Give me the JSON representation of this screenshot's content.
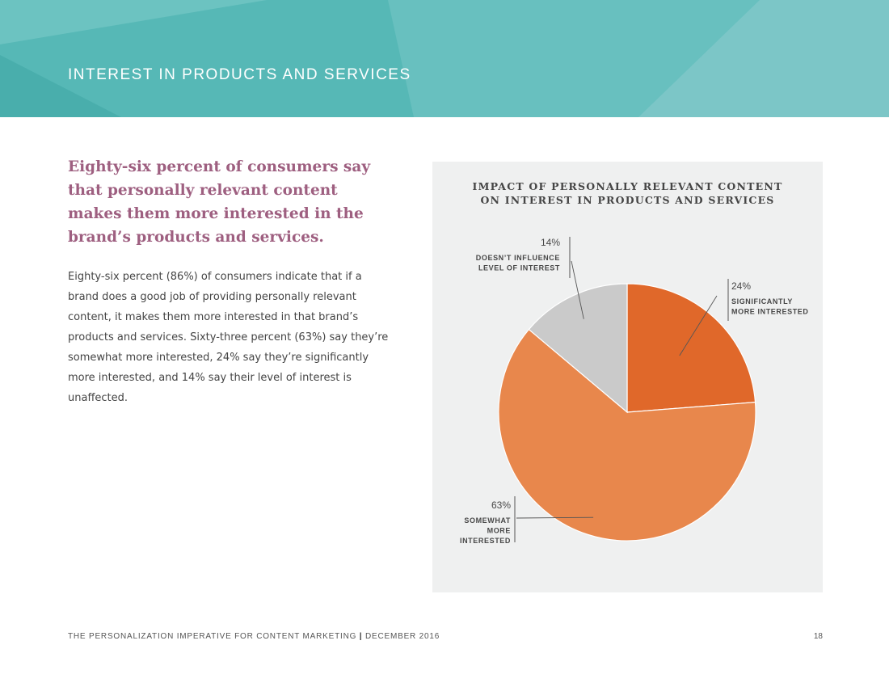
{
  "header": {
    "title": "INTEREST IN PRODUCTS AND SERVICES"
  },
  "intro": {
    "headline": "Eighty-six percent of consumers say that personally relevant content makes them more interested in the brand’s products and services.",
    "body": "Eighty-six percent (86%) of consumers indicate that if a brand does a good job of providing personally relevant content, it makes them more interested in that brand’s products and services. Sixty-three percent (63%) say they’re somewhat more interested, 24% say they’re significantly more interested, and 14% say their level of interest is unaffected."
  },
  "chart_data": {
    "type": "pie",
    "title_lines": [
      "IMPACT OF PERSONALLY RELEVANT CONTENT",
      "ON INTEREST IN PRODUCTS AND SERVICES"
    ],
    "slices": [
      {
        "label": "24%",
        "name_lines": [
          "SIGNIFICANTLY",
          "MORE INTERESTED"
        ],
        "value": 24,
        "color": "#e0682a"
      },
      {
        "label": "63%",
        "name_lines": [
          "SOMEWHAT",
          "MORE",
          "INTERESTED"
        ],
        "value": 63,
        "color": "#e8874c"
      },
      {
        "label": "14%",
        "name_lines": [
          "DOESN’T INFLUENCE",
          "LEVEL OF INTEREST"
        ],
        "value": 14,
        "color": "#cacaca"
      }
    ]
  },
  "footer": {
    "doc_title": "THE PERSONALIZATION IMPERATIVE FOR CONTENT MARKETING",
    "separator": "|",
    "date": "DECEMBER 2016",
    "page_number": "18"
  },
  "colors": {
    "banner_teal": "#56b8b6",
    "headline_purple": "#9e5f80",
    "panel_gray": "#eff0f0"
  }
}
